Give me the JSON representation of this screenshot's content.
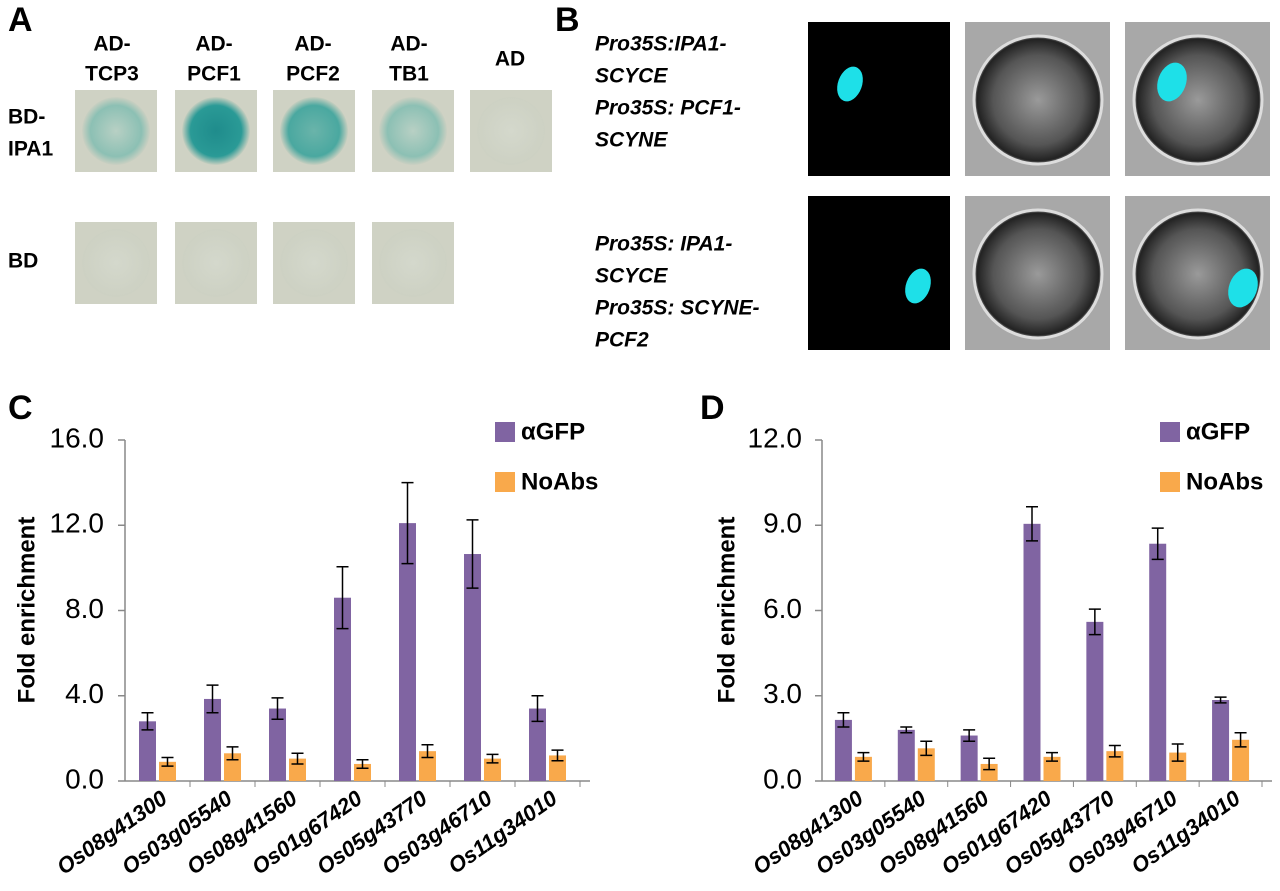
{
  "panel_a": {
    "label": "A",
    "columns": [
      [
        "AD-",
        "TCP3"
      ],
      [
        "AD-",
        "PCF1"
      ],
      [
        "AD-",
        "PCF2"
      ],
      [
        "AD-",
        "TB1"
      ],
      [
        "AD"
      ]
    ],
    "rows": [
      [
        "BD-",
        "IPA1"
      ],
      [
        "BD"
      ]
    ]
  },
  "panel_b": {
    "label": "B",
    "rows": [
      [
        "Pro35S:IPA1-",
        "SCYCE",
        "Pro35S: PCF1-",
        "SCYNE"
      ],
      [
        "Pro35S: IPA1-",
        "SCYCE",
        "Pro35S: SCYNE-",
        "PCF2"
      ]
    ]
  },
  "chart_data": [
    {
      "type": "bar",
      "panel_label": "C",
      "y_label": "Fold enrichment",
      "categories": [
        "Os08g41300",
        "Os03g05540",
        "Os08g41560",
        "Os01g67420",
        "Os05g43770",
        "Os03g46710",
        "Os11g34010"
      ],
      "series": [
        {
          "name": "αGFP",
          "color": "#8064a2",
          "values": [
            2.8,
            3.85,
            3.4,
            8.6,
            12.1,
            10.65,
            3.4
          ],
          "errors": [
            0.4,
            0.65,
            0.5,
            1.45,
            1.9,
            1.6,
            0.6
          ]
        },
        {
          "name": "NoAbs",
          "color": "#f9a94b",
          "values": [
            0.9,
            1.3,
            1.05,
            0.8,
            1.4,
            1.05,
            1.2
          ],
          "errors": [
            0.2,
            0.3,
            0.25,
            0.2,
            0.3,
            0.2,
            0.25
          ]
        }
      ],
      "ylim": [
        0,
        16
      ],
      "yticks": [
        {
          "value": 0,
          "label": "0.0"
        },
        {
          "value": 4,
          "label": "4.0"
        },
        {
          "value": 8,
          "label": "8.0"
        },
        {
          "value": 12,
          "label": "12.0"
        },
        {
          "value": 16,
          "label": "16.0"
        }
      ],
      "legend": "top-right"
    },
    {
      "type": "bar",
      "panel_label": "D",
      "y_label": "Fold enrichment",
      "categories": [
        "Os08g41300",
        "Os03g05540",
        "Os08g41560",
        "Os01g67420",
        "Os05g43770",
        "Os03g46710",
        "Os11g34010"
      ],
      "series": [
        {
          "name": "αGFP",
          "color": "#8064a2",
          "values": [
            2.15,
            1.8,
            1.6,
            9.05,
            5.6,
            8.35,
            2.85
          ],
          "errors": [
            0.25,
            0.1,
            0.2,
            0.6,
            0.45,
            0.55,
            0.1
          ]
        },
        {
          "name": "NoAbs",
          "color": "#f9a94b",
          "values": [
            0.85,
            1.15,
            0.6,
            0.85,
            1.05,
            1.0,
            1.45
          ],
          "errors": [
            0.15,
            0.25,
            0.2,
            0.15,
            0.2,
            0.3,
            0.25
          ]
        }
      ],
      "ylim": [
        0,
        12
      ],
      "yticks": [
        {
          "value": 0,
          "label": "0.0"
        },
        {
          "value": 3,
          "label": "3.0"
        },
        {
          "value": 6,
          "label": "6.0"
        },
        {
          "value": 9,
          "label": "9.0"
        },
        {
          "value": 12,
          "label": "12.0"
        }
      ],
      "legend": "top-right"
    }
  ]
}
